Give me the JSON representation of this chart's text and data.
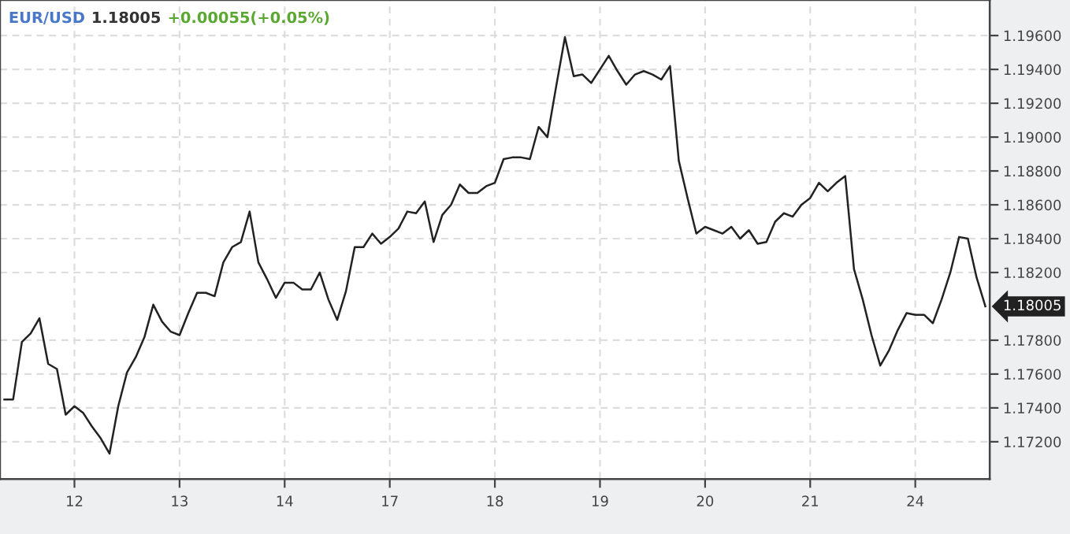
{
  "chart_data": {
    "type": "line",
    "title": "EUR/USD",
    "subtitle": "1.18005",
    "annotations": [
      "+0.00055(+0.05%)",
      "1.18005"
    ],
    "categories": [
      null,
      null,
      null,
      null,
      null,
      null,
      null,
      null,
      "12",
      null,
      null,
      null,
      null,
      null,
      null,
      null,
      null,
      null,
      null,
      null,
      "13",
      null,
      null,
      null,
      null,
      null,
      null,
      null,
      null,
      null,
      null,
      null,
      "14",
      null,
      null,
      null,
      null,
      null,
      null,
      null,
      null,
      null,
      null,
      null,
      "17",
      null,
      null,
      null,
      null,
      null,
      null,
      null,
      null,
      null,
      null,
      null,
      "18",
      null,
      null,
      null,
      null,
      null,
      null,
      null,
      null,
      null,
      null,
      null,
      "19",
      null,
      null,
      null,
      null,
      null,
      null,
      null,
      null,
      null,
      null,
      null,
      "20",
      null,
      null,
      null,
      null,
      null,
      null,
      null,
      null,
      null,
      null,
      null,
      "21",
      null,
      null,
      null,
      null,
      null,
      null,
      null,
      null,
      null,
      null,
      null,
      "24",
      null,
      null,
      null,
      null,
      null,
      null,
      null,
      null
    ],
    "series": [
      {
        "color": "#222222",
        "values": [
          1.1745,
          1.1745,
          1.1779,
          1.1784,
          1.1793,
          1.1766,
          1.1763,
          1.1736,
          1.1741,
          1.1737,
          1.1729,
          1.1722,
          1.1713,
          1.1741,
          1.1761,
          1.177,
          1.1782,
          1.1801,
          1.1791,
          1.1785,
          1.1783,
          1.1796,
          1.1808,
          1.1808,
          1.1806,
          1.1826,
          1.1835,
          1.1838,
          1.1856,
          1.1826,
          1.1816,
          1.1805,
          1.1814,
          1.1814,
          1.181,
          1.181,
          1.182,
          1.1804,
          1.1792,
          1.1809,
          1.1835,
          1.1835,
          1.1843,
          1.1837,
          1.1841,
          1.1846,
          1.1856,
          1.1855,
          1.1862,
          1.1838,
          1.1854,
          1.186,
          1.1872,
          1.1867,
          1.1867,
          1.1871,
          1.1873,
          1.1887,
          1.1888,
          1.1888,
          1.1887,
          1.1906,
          1.19,
          1.193,
          1.1959,
          1.1936,
          1.1937,
          1.1932,
          1.194,
          1.1948,
          1.1939,
          1.1931,
          1.1937,
          1.1939,
          1.1937,
          1.1934,
          1.1942,
          1.1886,
          1.1864,
          1.1843,
          1.1847,
          1.1845,
          1.1843,
          1.1847,
          1.184,
          1.1845,
          1.1837,
          1.1838,
          1.185,
          1.1855,
          1.1853,
          1.186,
          1.1864,
          1.1873,
          1.1868,
          1.1873,
          1.1877,
          1.1822,
          1.1804,
          1.1783,
          1.1765,
          1.1774,
          1.1786,
          1.1796,
          1.1795,
          1.1795,
          1.179,
          1.1804,
          1.182,
          1.1841,
          1.184,
          1.1817,
          1.18
        ]
      }
    ],
    "ylim": [
      1.1698,
      1.1981
    ],
    "yticks": [
      {
        "value": 1.172,
        "label": "1.17200"
      },
      {
        "value": 1.174,
        "label": "1.17400"
      },
      {
        "value": 1.176,
        "label": "1.17600"
      },
      {
        "value": 1.178,
        "label": "1.17800"
      },
      {
        "value": 1.182,
        "label": "1.18200"
      },
      {
        "value": 1.184,
        "label": "1.18400"
      },
      {
        "value": 1.186,
        "label": "1.18600"
      },
      {
        "value": 1.188,
        "label": "1.18800"
      },
      {
        "value": 1.19,
        "label": "1.19000"
      },
      {
        "value": 1.192,
        "label": "1.19200"
      },
      {
        "value": 1.194,
        "label": "1.19400"
      },
      {
        "value": 1.196,
        "label": "1.19600"
      }
    ],
    "grid": true
  }
}
